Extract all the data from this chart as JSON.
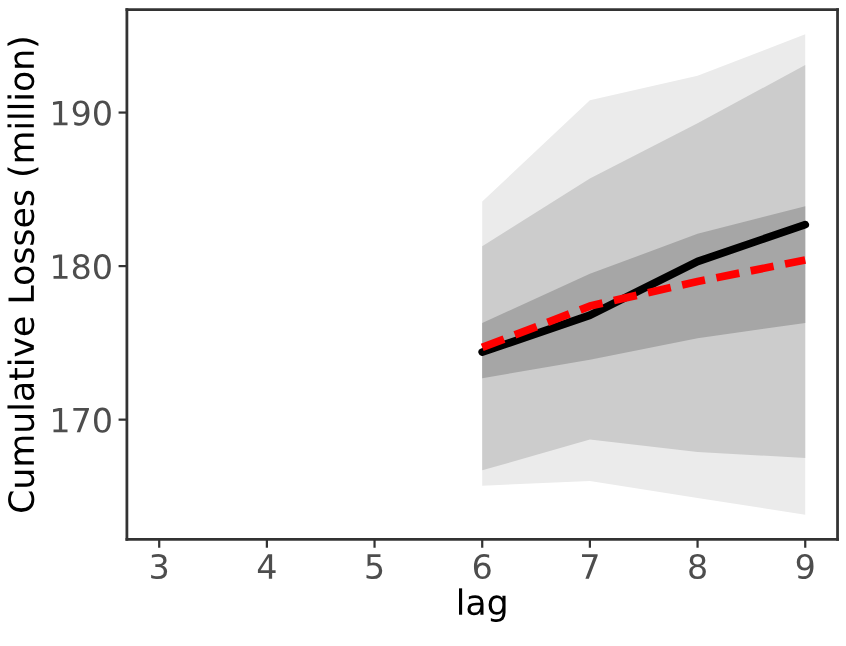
{
  "chart_data": {
    "type": "line",
    "xlabel": "lag",
    "ylabel": "Cumulative Losses (million)",
    "x": [
      6,
      7,
      8,
      9
    ],
    "series": [
      {
        "type": "area",
        "color": "#ebebeb",
        "values": [
          null,
          null,
          null,
          null
        ],
        "upper": [
          184.2,
          190.8,
          192.4,
          195.1
        ],
        "lower": [
          165.7,
          166.0,
          164.9,
          163.8
        ]
      },
      {
        "type": "area",
        "color": "#cccccc",
        "values": [
          null,
          null,
          null,
          null
        ],
        "upper": [
          181.3,
          185.7,
          189.3,
          193.1
        ],
        "lower": [
          166.7,
          168.7,
          167.9,
          167.5
        ]
      },
      {
        "type": "area",
        "color": "#a6a6a6",
        "values": [
          null,
          null,
          null,
          null
        ],
        "upper": [
          176.3,
          179.5,
          182.1,
          183.9
        ],
        "lower": [
          172.7,
          173.9,
          175.3,
          176.3
        ]
      },
      {
        "color": "#000000",
        "line_style": "solid",
        "values": [
          174.4,
          176.8,
          180.3,
          182.7
        ]
      },
      {
        "color": "#ff0000",
        "line_style": "dashed",
        "values": [
          174.7,
          177.4,
          179.0,
          180.4
        ]
      }
    ],
    "xlim": [
      2.7,
      9.3
    ],
    "xticks": [
      3,
      4,
      5,
      6,
      7,
      8,
      9
    ],
    "ylim": [
      162.2,
      196.7
    ],
    "yticks": [
      170,
      180,
      190
    ],
    "grid": false,
    "legend": false
  }
}
